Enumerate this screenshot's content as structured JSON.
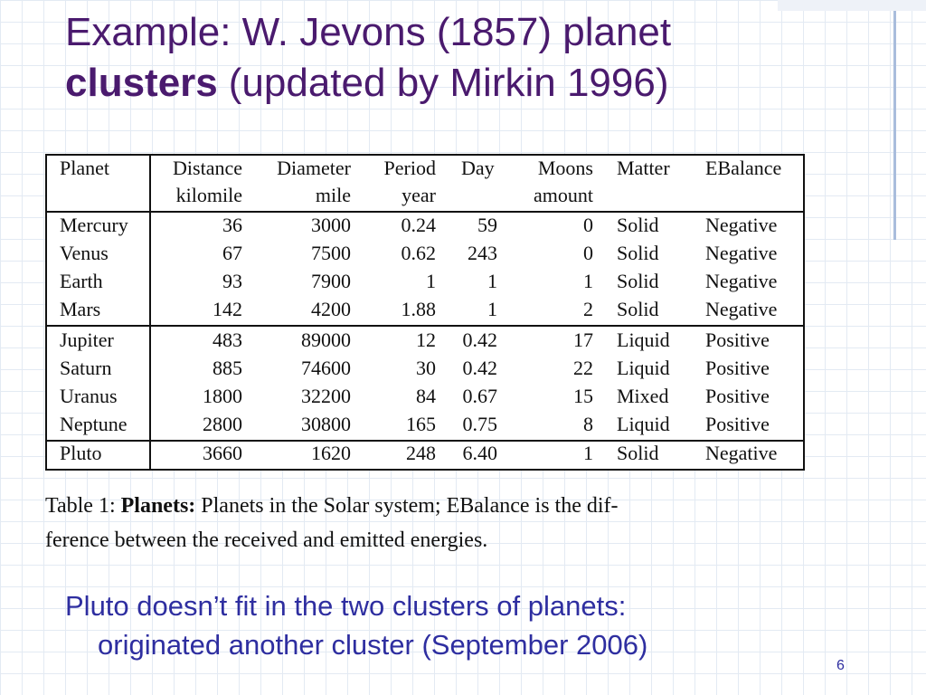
{
  "title": {
    "line1": "Example: W. Jevons (1857) planet",
    "bold": "clusters",
    "rest": "(updated by Mirkin 1996)"
  },
  "table": {
    "columns": [
      {
        "label": "Planet"
      },
      {
        "label": "Distance",
        "unit": "kilomile"
      },
      {
        "label": "Diameter",
        "unit": "mile"
      },
      {
        "label": "Period",
        "unit": "year"
      },
      {
        "label": "Day"
      },
      {
        "label": "Moons",
        "unit": "amount"
      },
      {
        "label": "Matter"
      },
      {
        "label": "EBalance"
      }
    ],
    "rows": [
      [
        "Mercury",
        "36",
        "3000",
        "0.24",
        "59",
        "0",
        "Solid",
        "Negative"
      ],
      [
        "Venus",
        "67",
        "7500",
        "0.62",
        "243",
        "0",
        "Solid",
        "Negative"
      ],
      [
        "Earth",
        "93",
        "7900",
        "1",
        "1",
        "1",
        "Solid",
        "Negative"
      ],
      [
        "Mars",
        "142",
        "4200",
        "1.88",
        "1",
        "2",
        "Solid",
        "Negative"
      ],
      [
        "Jupiter",
        "483",
        "89000",
        "12",
        "0.42",
        "17",
        "Liquid",
        "Positive"
      ],
      [
        "Saturn",
        "885",
        "74600",
        "30",
        "0.42",
        "22",
        "Liquid",
        "Positive"
      ],
      [
        "Uranus",
        "1800",
        "32200",
        "84",
        "0.67",
        "15",
        "Mixed",
        "Positive"
      ],
      [
        "Neptune",
        "2800",
        "30800",
        "165",
        "0.75",
        "8",
        "Liquid",
        "Positive"
      ],
      [
        "Pluto",
        "3660",
        "1620",
        "248",
        "6.40",
        "1",
        "Solid",
        "Negative"
      ]
    ]
  },
  "caption": {
    "label": "Table 1:",
    "bold": "Planets:",
    "line1": "Planets in the Solar system; EBalance is the dif-",
    "line2": "ference between the received and emitted energies."
  },
  "note": {
    "line1": "Pluto doesn’t fit in the two clusters of planets:",
    "line2": "originated another cluster (September 2006)"
  },
  "page_number": "6"
}
